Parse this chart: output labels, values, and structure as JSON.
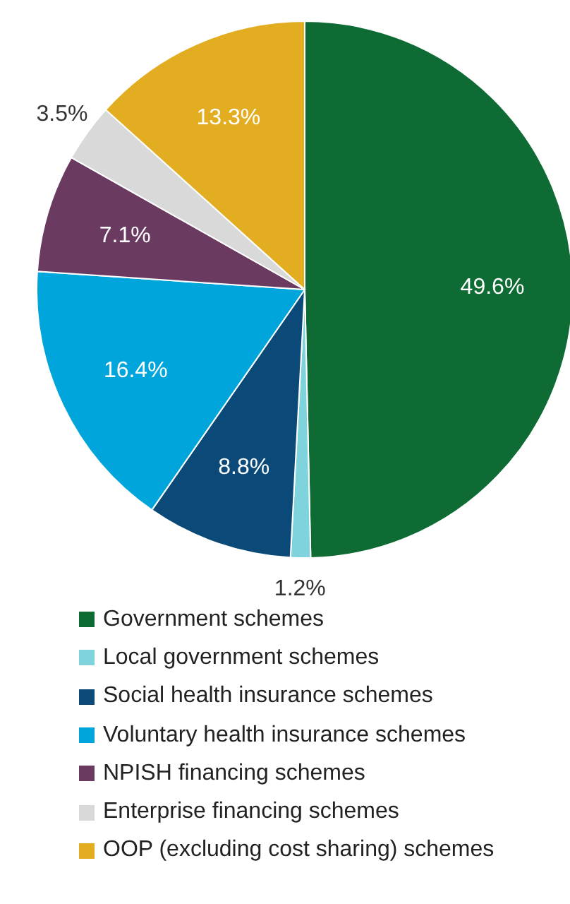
{
  "chart_data": {
    "type": "pie",
    "categories": [
      "Government schemes",
      "Local government schemes",
      "Social health insurance schemes",
      "Voluntary health insurance schemes",
      "NPISH financing schemes",
      "Enterprise financing schemes",
      "OOP (excluding cost sharing) schemes"
    ],
    "values": [
      49.6,
      1.2,
      8.8,
      16.4,
      7.1,
      3.5,
      13.3
    ],
    "value_labels": [
      "49.6%",
      "1.2%",
      "8.8%",
      "16.4%",
      "7.1%",
      "3.5%",
      "13.3%"
    ],
    "colors": [
      "#0e6b33",
      "#7fd3dc",
      "#0b4a78",
      "#00a5dc",
      "#6b3a60",
      "#d9d9d9",
      "#e3ad22"
    ],
    "legend": "bottom"
  }
}
